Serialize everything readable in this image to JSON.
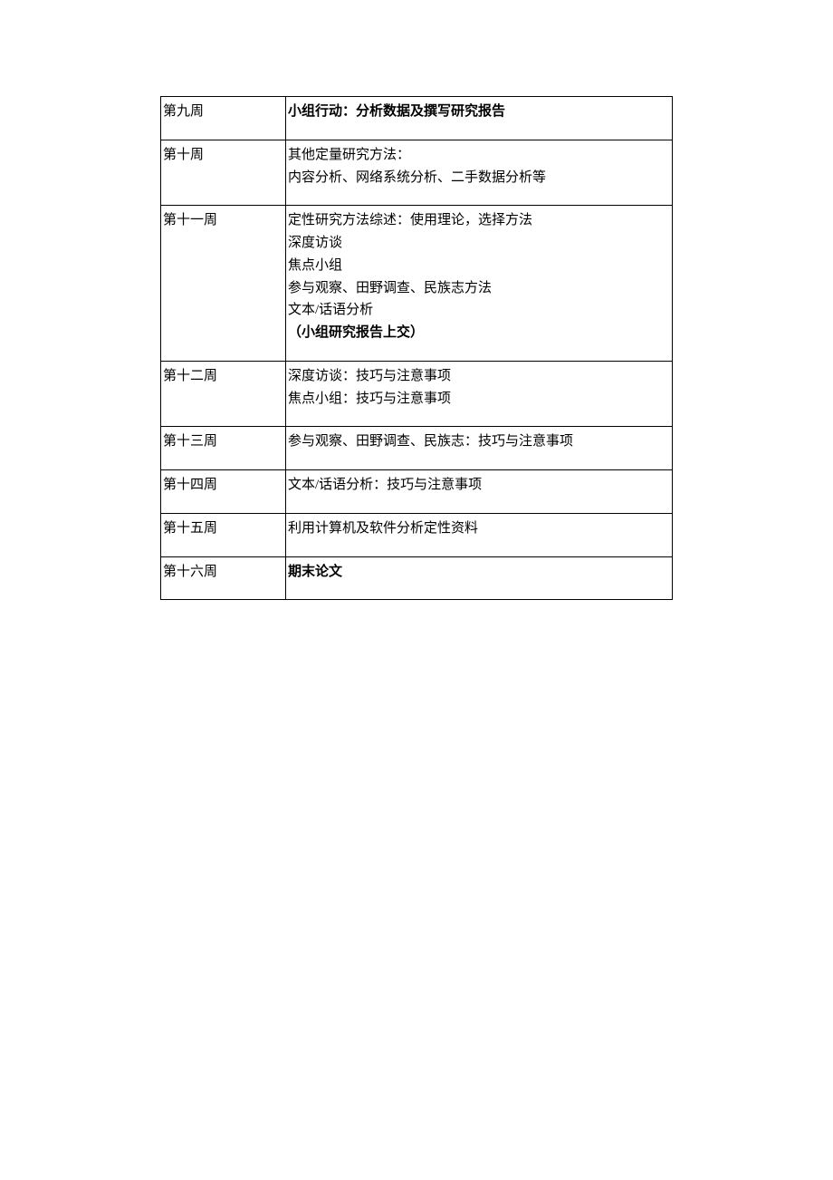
{
  "table": {
    "rows": [
      {
        "week": "第九周",
        "content": [
          {
            "text": "小组行动：分析数据及撰写研究报告",
            "bold": true
          }
        ]
      },
      {
        "week": "第十周",
        "content": [
          {
            "text": "其他定量研究方法：",
            "bold": false
          },
          {
            "text": "内容分析、网络系统分析、二手数据分析等",
            "bold": false
          }
        ]
      },
      {
        "week": "第十一周",
        "content": [
          {
            "text": "定性研究方法综述：使用理论，选择方法",
            "bold": false
          },
          {
            "text": "深度访谈",
            "bold": false
          },
          {
            "text": "焦点小组",
            "bold": false
          },
          {
            "text": "参与观察、田野调查、民族志方法",
            "bold": false
          },
          {
            "text": "文本/话语分析",
            "bold": false
          },
          {
            "text": "（小组研究报告上交）",
            "bold": true
          }
        ]
      },
      {
        "week": "第十二周",
        "content": [
          {
            "text": "深度访谈：技巧与注意事项",
            "bold": false
          },
          {
            "text": "焦点小组：技巧与注意事项",
            "bold": false
          }
        ]
      },
      {
        "week": "第十三周",
        "content": [
          {
            "text": "参与观察、田野调查、民族志：技巧与注意事项",
            "bold": false
          }
        ]
      },
      {
        "week": "第十四周",
        "content": [
          {
            "text": "文本/话语分析：技巧与注意事项",
            "bold": false
          }
        ]
      },
      {
        "week": "第十五周",
        "content": [
          {
            "text": "利用计算机及软件分析定性资料",
            "bold": false
          }
        ]
      },
      {
        "week": "第十六周",
        "content": [
          {
            "text": "期末论文",
            "bold": true
          }
        ]
      }
    ]
  }
}
